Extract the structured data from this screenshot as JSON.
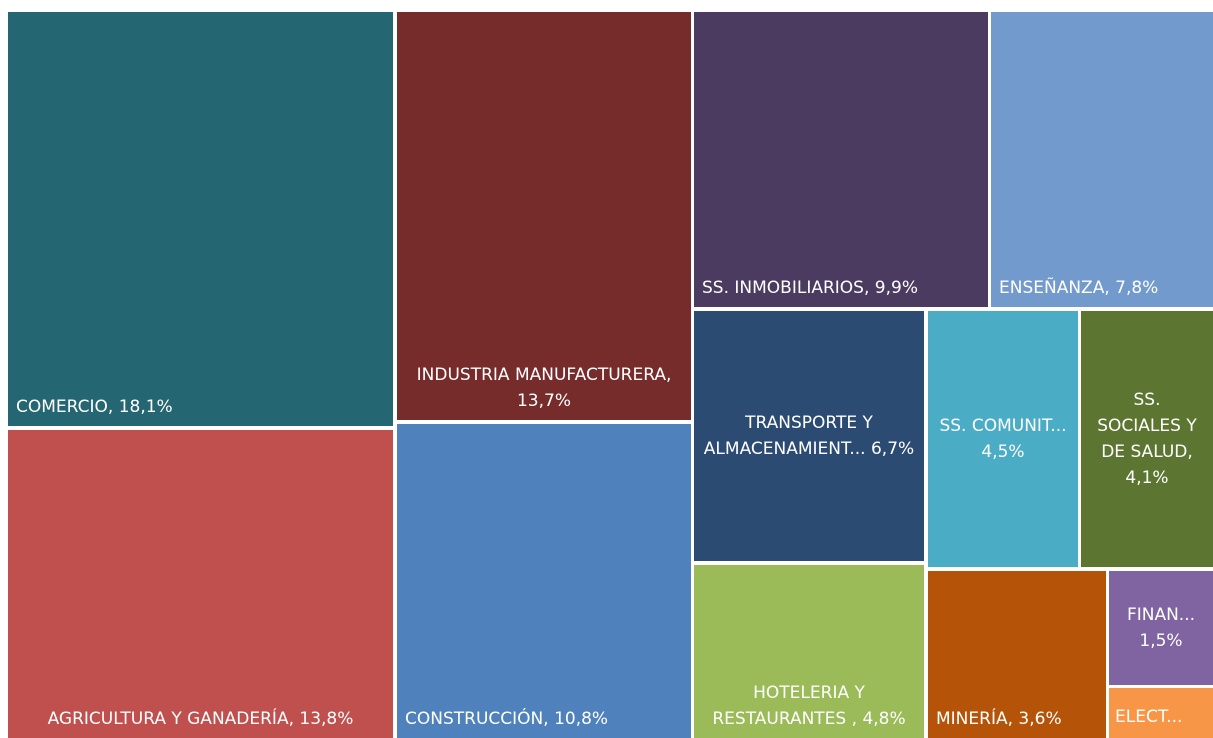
{
  "chart_data": {
    "type": "treemap",
    "categories": [
      "COMERCIO,",
      "AGRICULTURA Y GANADERÍA,",
      "INDUSTRIA MANUFACTURERA,",
      "CONSTRUCCIÓN,",
      "SS. INMOBILIARIOS,",
      "ENSEÑANZA,",
      "TRANSPORTE Y ALMACENAMIENT...",
      "HOTELERIA Y RESTAURANTES ,",
      "SS. COMUNIT...",
      "SS. SOCIALES Y DE SALUD,",
      "MINERÍA,",
      "FINAN...",
      "ELECT..."
    ],
    "values": [
      18.1,
      13.8,
      13.7,
      10.8,
      9.9,
      7.8,
      6.7,
      4.8,
      4.5,
      4.1,
      3.6,
      1.5,
      0.7
    ],
    "value_labels": [
      "18,1%",
      "13,8%",
      "13,7%",
      "10,8%",
      "9,9%",
      "7,8%",
      "6,7%",
      "4,8%",
      "4,5%",
      "4,1%",
      "3,6%",
      "1,5%",
      null
    ],
    "colors": [
      "#256673",
      "#c0504d",
      "#772c2c",
      "#4f81bd",
      "#4c3b60",
      "#729acc",
      "#2c4b73",
      "#9bbb59",
      "#4bacc6",
      "#5c7530",
      "#b55409",
      "#8064a2",
      "#f79646"
    ]
  }
}
